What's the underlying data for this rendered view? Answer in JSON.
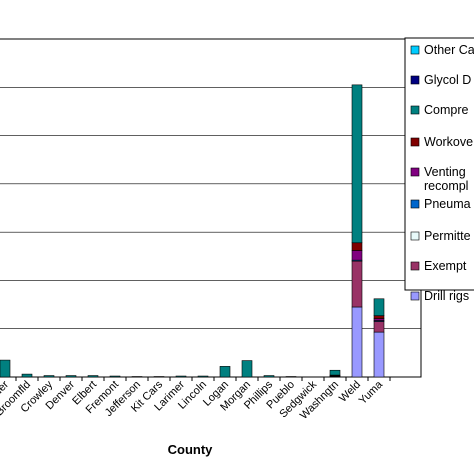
{
  "chart_data": {
    "type": "bar",
    "stacked": true,
    "title": "",
    "xlabel": "County",
    "ylabel": "",
    "ylim": [
      0,
      700
    ],
    "grid": true,
    "legend_position": "right",
    "categories": [
      "Boulder",
      "Broomfld",
      "Crowley",
      "Denver",
      "Elbert",
      "Fremont",
      "Jefferson",
      "Kit Cars",
      "Larimer",
      "Lincoln",
      "Logan",
      "Morgan",
      "Phillips",
      "Pueblo",
      "Sedgwick",
      "Washngtn",
      "Weld",
      "Yuma"
    ],
    "series": [
      {
        "name": "Drill rigs",
        "color": "#9999ff",
        "values": [
          0,
          0,
          0,
          0,
          0,
          0,
          0,
          0,
          0,
          0,
          0,
          0,
          0,
          0,
          0,
          1,
          145,
          93
        ]
      },
      {
        "name": "Exempt",
        "color": "#993366",
        "values": [
          0,
          0,
          0,
          0,
          0,
          0,
          0,
          0,
          0,
          0,
          0,
          0,
          0,
          0,
          0,
          1,
          95,
          22
        ]
      },
      {
        "name": "Permitted",
        "color": "#e8fafa",
        "values": [
          0,
          0,
          0,
          0,
          0,
          0,
          0,
          0,
          0,
          0,
          0,
          0,
          0,
          0,
          0,
          0,
          0,
          0
        ]
      },
      {
        "name": "Pneumatic",
        "color": "#0066cc",
        "values": [
          0,
          0,
          0,
          0,
          0,
          0,
          0,
          0,
          0,
          0,
          0,
          0,
          0,
          0,
          0,
          0,
          2,
          2
        ]
      },
      {
        "name": "Venting recompletions",
        "color": "#800080",
        "values": [
          0,
          0,
          0,
          0,
          0,
          0,
          0,
          0,
          0,
          0,
          0,
          0,
          0,
          0,
          0,
          1,
          20,
          4
        ]
      },
      {
        "name": "Workovers",
        "color": "#800000",
        "values": [
          0,
          0,
          0,
          0,
          0,
          0,
          0,
          0,
          0,
          0,
          0,
          0,
          0,
          0,
          0,
          1,
          16,
          6
        ]
      },
      {
        "name": "Compressors",
        "color": "#008080",
        "values": [
          35,
          6,
          3,
          3,
          3,
          2,
          1,
          1,
          2,
          2,
          22,
          34,
          3,
          1,
          0,
          10,
          327,
          35
        ]
      },
      {
        "name": "Glycol Dehydrators",
        "color": "#000080",
        "values": [
          0,
          0,
          0,
          0,
          0,
          0,
          0,
          0,
          0,
          0,
          0,
          0,
          0,
          0,
          0,
          0,
          0,
          0
        ]
      },
      {
        "name": "Other Categories",
        "color": "#00ccff",
        "values": [
          0,
          0,
          0,
          0,
          0,
          0,
          0,
          0,
          0,
          0,
          0,
          0,
          0,
          0,
          0,
          0,
          0,
          0
        ]
      }
    ],
    "legend": [
      {
        "text": "Other Ca",
        "series": "Other Categories"
      },
      {
        "text": "Glycol D",
        "series": "Glycol Dehydrators"
      },
      {
        "text": "Compre",
        "series": "Compressors"
      },
      {
        "text": "Workove",
        "series": "Workovers"
      },
      {
        "text": "Venting",
        "text2": "recompl",
        "series": "Venting recompletions"
      },
      {
        "text": "Pneuma",
        "series": "Pneumatic"
      },
      {
        "text": "Permitte",
        "series": "Permitted"
      },
      {
        "text": "Exempt",
        "series": "Exempt"
      },
      {
        "text": "Drill rigs",
        "series": "Drill rigs"
      }
    ]
  }
}
